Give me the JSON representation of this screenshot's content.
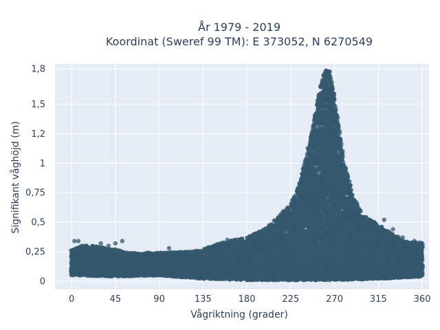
{
  "chart_data": {
    "type": "scatter",
    "title": [
      "År 1979 - 2019",
      "Koordinat (Sweref 99 TM): E 373052, N 6270549"
    ],
    "xlabel": "Vågriktning (grader)",
    "ylabel": "Signifikant våghöjd (m)",
    "xlim": [
      -17,
      367
    ],
    "ylim": [
      -0.07,
      1.84
    ],
    "x_ticks": [
      0,
      45,
      90,
      135,
      180,
      225,
      270,
      315,
      360
    ],
    "x_tick_labels": [
      "0",
      "45",
      "90",
      "135",
      "180",
      "225",
      "270",
      "315",
      "360"
    ],
    "y_ticks": [
      0,
      0.25,
      0.5,
      0.75,
      1.0,
      1.25,
      1.5,
      1.8
    ],
    "y_tick_labels": [
      "0",
      "0,25",
      "0,5",
      "0,75",
      "1",
      "1,2",
      "1,5",
      "1,8"
    ],
    "grid": true,
    "legend": "none",
    "marker_color": "#34586e",
    "background": "#e5ecf6",
    "upper_envelope": {
      "x": [
        0,
        10,
        20,
        45,
        60,
        90,
        120,
        135,
        150,
        180,
        200,
        225,
        235,
        245,
        255,
        260,
        265,
        270,
        280,
        290,
        300,
        315,
        330,
        345,
        360
      ],
      "y": [
        0.26,
        0.3,
        0.3,
        0.27,
        0.24,
        0.24,
        0.25,
        0.27,
        0.32,
        0.37,
        0.45,
        0.65,
        0.85,
        1.2,
        1.62,
        1.79,
        1.78,
        1.55,
        1.0,
        0.7,
        0.55,
        0.48,
        0.4,
        0.33,
        0.33
      ]
    },
    "lower_envelope": {
      "x": [
        0,
        45,
        90,
        135,
        180,
        225,
        270,
        315,
        360
      ],
      "y": [
        0.05,
        0.04,
        0.05,
        0.02,
        0.01,
        0.01,
        0.01,
        0.02,
        0.04
      ]
    },
    "outliers": [
      {
        "x": 3,
        "y": 0.34
      },
      {
        "x": 7,
        "y": 0.34
      },
      {
        "x": 30,
        "y": 0.32
      },
      {
        "x": 38,
        "y": 0.3
      },
      {
        "x": 45,
        "y": 0.32
      },
      {
        "x": 52,
        "y": 0.34
      },
      {
        "x": 100,
        "y": 0.28
      },
      {
        "x": 160,
        "y": 0.35
      },
      {
        "x": 176,
        "y": 0.33
      },
      {
        "x": 321,
        "y": 0.52
      },
      {
        "x": 330,
        "y": 0.44
      },
      {
        "x": 340,
        "y": 0.37
      },
      {
        "x": 352,
        "y": 0.34
      }
    ]
  }
}
